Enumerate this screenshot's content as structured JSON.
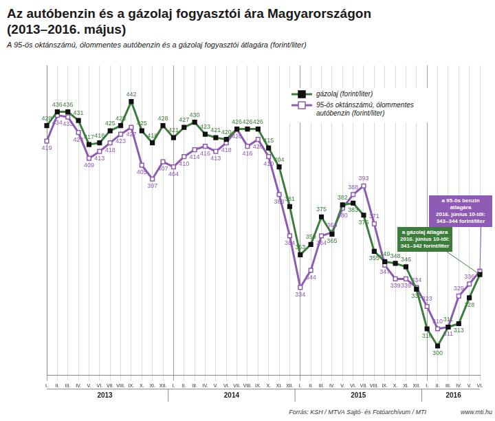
{
  "chart_data": {
    "type": "line",
    "title": [
      "Az autóbenzin és a gázolaj fogyasztói ára Magyarországon",
      "(2013–2016. május)"
    ],
    "subtitle": "A 95-ös oktánszámú, ólommentes autóbenzin és a gázolaj fogyasztói átlagára (forint/liter)",
    "categories": [
      "I.",
      "II.",
      "III.",
      "IV.",
      "V.",
      "VI.",
      "VII.",
      "VIII.",
      "IX.",
      "X.",
      "XI.",
      "XII.",
      "I.",
      "II.",
      "III.",
      "IV.",
      "V.",
      "VI.",
      "VII.",
      "VIII.",
      "IX.",
      "X.",
      "XI.",
      "XII.",
      "I.",
      "II.",
      "III.",
      "IV.",
      "V.",
      "VI.",
      "VII.",
      "VIII.",
      "IX.",
      "X.",
      "XI.",
      "XII.",
      "I.",
      "II.",
      "III.",
      "IV.",
      "V.",
      "VI."
    ],
    "x_groups": [
      {
        "label": "2013",
        "count": 12
      },
      {
        "label": "2014",
        "count": 12
      },
      {
        "label": "2015",
        "count": 12
      },
      {
        "label": "2016",
        "count": 6
      }
    ],
    "series": [
      {
        "name": "gázolaj (forint/liter)",
        "color": "#3c7d3b",
        "marker": "filled_square",
        "values": [
          428,
          436,
          436,
          431,
          417,
          418,
          425,
          428,
          442,
          425,
          418,
          428,
          421,
          427,
          430,
          423,
          421,
          420,
          426,
          426,
          426,
          415,
          404,
          381,
          353,
          359,
          375,
          365,
          382,
          383,
          376,
          355,
          349,
          348,
          346,
          333,
          310,
          300,
          311,
          313,
          328,
          341.5
        ],
        "value_labels": [
          "428",
          "436",
          "436",
          "431",
          "417",
          "418",
          "425",
          "428",
          "442",
          "425",
          "418",
          "428",
          "421",
          "427",
          "430",
          "423",
          "421",
          "420",
          "426",
          "426",
          "426",
          "415",
          "404",
          "381",
          "353",
          "359",
          "375",
          "365",
          "382",
          "383",
          "376",
          "355",
          "349",
          "348",
          "346",
          "333",
          "310",
          "300",
          "311",
          "313",
          "328",
          null
        ]
      },
      {
        "name": "95-ös oktánszámú, ólommentes autóbenzin (forint/liter)",
        "color": "#8e5ab4",
        "marker": "open_square",
        "values": [
          419,
          434,
          433,
          424,
          409,
          413,
          418,
          423,
          427,
          405,
          397,
          407,
          404,
          410,
          414,
          416,
          413,
          418,
          426,
          416,
          420,
          410,
          388,
          364,
          334,
          344,
          364,
          366,
          380,
          388,
          393,
          371,
          347,
          339,
          339,
          334,
          323,
          310,
          311,
          329,
          336,
          343.5
        ],
        "value_labels": [
          "419",
          "434",
          "433",
          "424",
          "409",
          "413",
          "418",
          "423",
          "427",
          "405",
          "397",
          "407",
          "404",
          "410",
          "414",
          "416",
          "413",
          "418",
          "426",
          "416",
          "420",
          "410",
          "388",
          "364",
          "334",
          "344",
          "364",
          "366",
          "380",
          "388",
          "393",
          "371",
          "347",
          "339",
          "339",
          "334",
          "323",
          "310",
          "311",
          "329",
          "336",
          null
        ]
      }
    ],
    "ylim": [
      283,
      463
    ],
    "yticks": [],
    "tick_labels": "x",
    "grid": "x",
    "legend": "top-right",
    "data_labels": true,
    "annotations": [
      {
        "text": [
          "a gázolaj átlagára",
          "2016. június 10-től:",
          "341–342 forint/liter"
        ],
        "color": "#3c7d3b"
      },
      {
        "text": [
          "a 95-ös benzin átlagára",
          "2016. június 10-től:",
          "343–344 forint/liter"
        ],
        "color": "#8e5ab4"
      }
    ],
    "source": "Forrás: KSH / MTVA Sajtó- és Fotóarchívum / MTI",
    "website": "www.mti.hu"
  }
}
